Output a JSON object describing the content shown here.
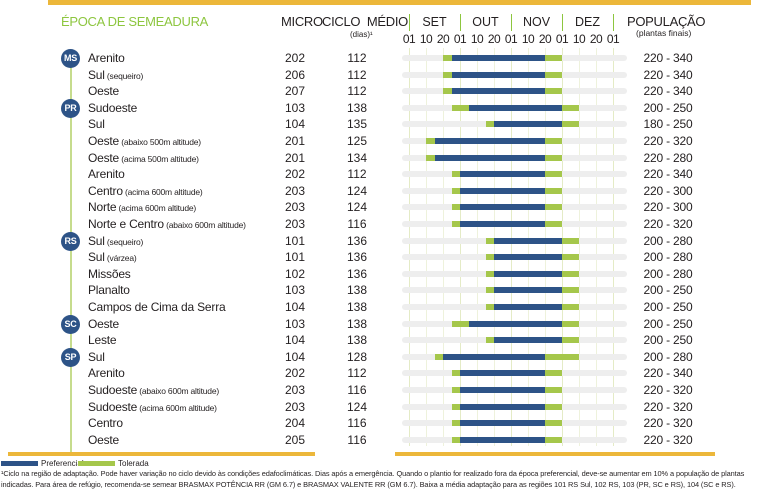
{
  "header": {
    "title": "ÉPOCA DE SEMEADURA",
    "micro": "MICRO",
    "ciclo": "CICLO  MÉDIO",
    "dias": "(dias)¹",
    "populacao": "POPULAÇÃO",
    "populacao_sub": "(plantas finais)"
  },
  "timeline": {
    "months": [
      "SET",
      "OUT",
      "NOV",
      "DEZ"
    ],
    "ticks": [
      "01",
      "10",
      "20",
      "01",
      "10",
      "20",
      "01",
      "10",
      "20",
      "01",
      "10",
      "20",
      "01"
    ]
  },
  "colors": {
    "preferencial": "#2d5387",
    "tolerada": "#a5c74b",
    "accent_title": "#8dc63f",
    "rule": "#ecb73a"
  },
  "legend": {
    "preferencial": "Preferencial",
    "tolerada": "Tolerada"
  },
  "footnote": "¹Ciclo na região de adaptação. Pode haver variação no ciclo devido às condições edafoclimáticas. Dias após a emergência. Quando o plantio for realizado fora da época preferencial, deve-se aumentar em 10% a população de plantas indicadas. Para área de refúgio, recomenda-se semear BRASMAX POTÊNCIA RR (GM 6.7) e BRASMAX VALENTE RR (GM 6.7). Baixa a média adaptação para as regiões 101 RS Sul, 102 RS, 103 (PR,  SC e RS), 104 (SC e RS).",
  "chart_data": {
    "type": "table",
    "title": "ÉPOCA DE SEMEADURA",
    "timeline_axis": {
      "unit": "10-day tick index, 0 = SET 01, 12 = JAN 01",
      "range": [
        0,
        12
      ],
      "months": [
        "SET",
        "OUT",
        "NOV",
        "DEZ"
      ],
      "tick_labels": [
        "01",
        "10",
        "20",
        "01",
        "10",
        "20",
        "01",
        "10",
        "20",
        "01",
        "10",
        "20",
        "01"
      ]
    },
    "series": [
      {
        "name": "Preferencial",
        "color": "#2d5387"
      },
      {
        "name": "Tolerada",
        "color": "#a5c74b"
      }
    ],
    "states": [
      {
        "code": "MS",
        "rows": [
          {
            "name": "Arenito",
            "note": "",
            "micro": "202",
            "ciclo": "112",
            "pop": "220 - 340",
            "tol_start": 2,
            "pref_start": 2.5,
            "pref_end": 8,
            "tol_end": 9
          },
          {
            "name": "Sul",
            "note": "(sequeiro)",
            "micro": "206",
            "ciclo": "112",
            "pop": "220 - 340",
            "tol_start": 2,
            "pref_start": 2.5,
            "pref_end": 8,
            "tol_end": 9
          },
          {
            "name": "Oeste",
            "note": "",
            "micro": "207",
            "ciclo": "112",
            "pop": "220 - 340",
            "tol_start": 2,
            "pref_start": 2.5,
            "pref_end": 8,
            "tol_end": 9
          }
        ]
      },
      {
        "code": "PR",
        "rows": [
          {
            "name": "Sudoeste",
            "note": "",
            "micro": "103",
            "ciclo": "138",
            "pop": "200 - 250",
            "tol_start": 2.5,
            "pref_start": 3.5,
            "pref_end": 9,
            "tol_end": 10
          },
          {
            "name": "Sul",
            "note": "",
            "micro": "104",
            "ciclo": "135",
            "pop": "180 - 250",
            "tol_start": 4.5,
            "pref_start": 5,
            "pref_end": 9,
            "tol_end": 10
          },
          {
            "name": "Oeste",
            "note": "(abaixo 500m altitude)",
            "micro": "201",
            "ciclo": "125",
            "pop": "220 - 320",
            "tol_start": 1,
            "pref_start": 1.5,
            "pref_end": 8,
            "tol_end": 9
          },
          {
            "name": "Oeste",
            "note": "(acima 500m altitude)",
            "micro": "201",
            "ciclo": "134",
            "pop": "220 - 280",
            "tol_start": 1,
            "pref_start": 1.5,
            "pref_end": 8,
            "tol_end": 9
          },
          {
            "name": "Arenito",
            "note": "",
            "micro": "202",
            "ciclo": "112",
            "pop": "220 - 340",
            "tol_start": 2.5,
            "pref_start": 3,
            "pref_end": 8,
            "tol_end": 9
          },
          {
            "name": "Centro",
            "note": "(acima 600m altitude)",
            "micro": "203",
            "ciclo": "124",
            "pop": "220 - 300",
            "tol_start": 2.5,
            "pref_start": 3,
            "pref_end": 8,
            "tol_end": 9
          },
          {
            "name": "Norte",
            "note": "(acima 600m altitude)",
            "micro": "203",
            "ciclo": "124",
            "pop": "220 - 300",
            "tol_start": 2.5,
            "pref_start": 3,
            "pref_end": 8,
            "tol_end": 9
          },
          {
            "name": "Norte e Centro",
            "note": "(abaixo 600m altitude)",
            "micro": "203",
            "ciclo": "116",
            "pop": "220 - 320",
            "tol_start": 2.5,
            "pref_start": 3,
            "pref_end": 8,
            "tol_end": 9
          }
        ]
      },
      {
        "code": "RS",
        "rows": [
          {
            "name": "Sul",
            "note": "(sequeiro)",
            "micro": "101",
            "ciclo": "136",
            "pop": "200 - 280",
            "tol_start": 4.5,
            "pref_start": 5,
            "pref_end": 9,
            "tol_end": 10
          },
          {
            "name": "Sul",
            "note": "(várzea)",
            "micro": "101",
            "ciclo": "136",
            "pop": "200 - 280",
            "tol_start": 4.5,
            "pref_start": 5,
            "pref_end": 9,
            "tol_end": 10
          },
          {
            "name": "Missões",
            "note": "",
            "micro": "102",
            "ciclo": "136",
            "pop": "200 - 280",
            "tol_start": 4.5,
            "pref_start": 5,
            "pref_end": 9,
            "tol_end": 10
          },
          {
            "name": "Planalto",
            "note": "",
            "micro": "103",
            "ciclo": "138",
            "pop": "200 - 250",
            "tol_start": 4.5,
            "pref_start": 5,
            "pref_end": 9,
            "tol_end": 10
          },
          {
            "name": "Campos de Cima da Serra",
            "note": "",
            "micro": "104",
            "ciclo": "138",
            "pop": "200 - 250",
            "tol_start": 4.5,
            "pref_start": 5,
            "pref_end": 9,
            "tol_end": 10
          }
        ]
      },
      {
        "code": "SC",
        "rows": [
          {
            "name": "Oeste",
            "note": "",
            "micro": "103",
            "ciclo": "138",
            "pop": "200 - 250",
            "tol_start": 2.5,
            "pref_start": 3.5,
            "pref_end": 9,
            "tol_end": 10
          },
          {
            "name": "Leste",
            "note": "",
            "micro": "104",
            "ciclo": "138",
            "pop": "200 - 250",
            "tol_start": 4.5,
            "pref_start": 5,
            "pref_end": 9,
            "tol_end": 10
          }
        ]
      },
      {
        "code": "SP",
        "rows": [
          {
            "name": "Sul",
            "note": "",
            "micro": "104",
            "ciclo": "128",
            "pop": "200 - 280",
            "tol_start": 1.5,
            "pref_start": 2,
            "pref_end": 8,
            "tol_end": 10
          },
          {
            "name": "Arenito",
            "note": "",
            "micro": "202",
            "ciclo": "112",
            "pop": "220 - 340",
            "tol_start": 2.5,
            "pref_start": 3,
            "pref_end": 8,
            "tol_end": 9
          },
          {
            "name": "Sudoeste",
            "note": "(abaixo 600m altitude)",
            "micro": "203",
            "ciclo": "116",
            "pop": "220 - 320",
            "tol_start": 2.5,
            "pref_start": 3,
            "pref_end": 8,
            "tol_end": 9
          },
          {
            "name": "Sudoeste",
            "note": "(acima 600m altitude)",
            "micro": "203",
            "ciclo": "124",
            "pop": "220 - 320",
            "tol_start": 2.5,
            "pref_start": 3,
            "pref_end": 8,
            "tol_end": 9
          },
          {
            "name": "Centro",
            "note": "",
            "micro": "204",
            "ciclo": "116",
            "pop": "220 - 320",
            "tol_start": 2.5,
            "pref_start": 3,
            "pref_end": 8,
            "tol_end": 9
          },
          {
            "name": "Oeste",
            "note": "",
            "micro": "205",
            "ciclo": "116",
            "pop": "220 - 320",
            "tol_start": 2.5,
            "pref_start": 3,
            "pref_end": 8,
            "tol_end": 9
          }
        ]
      }
    ]
  }
}
